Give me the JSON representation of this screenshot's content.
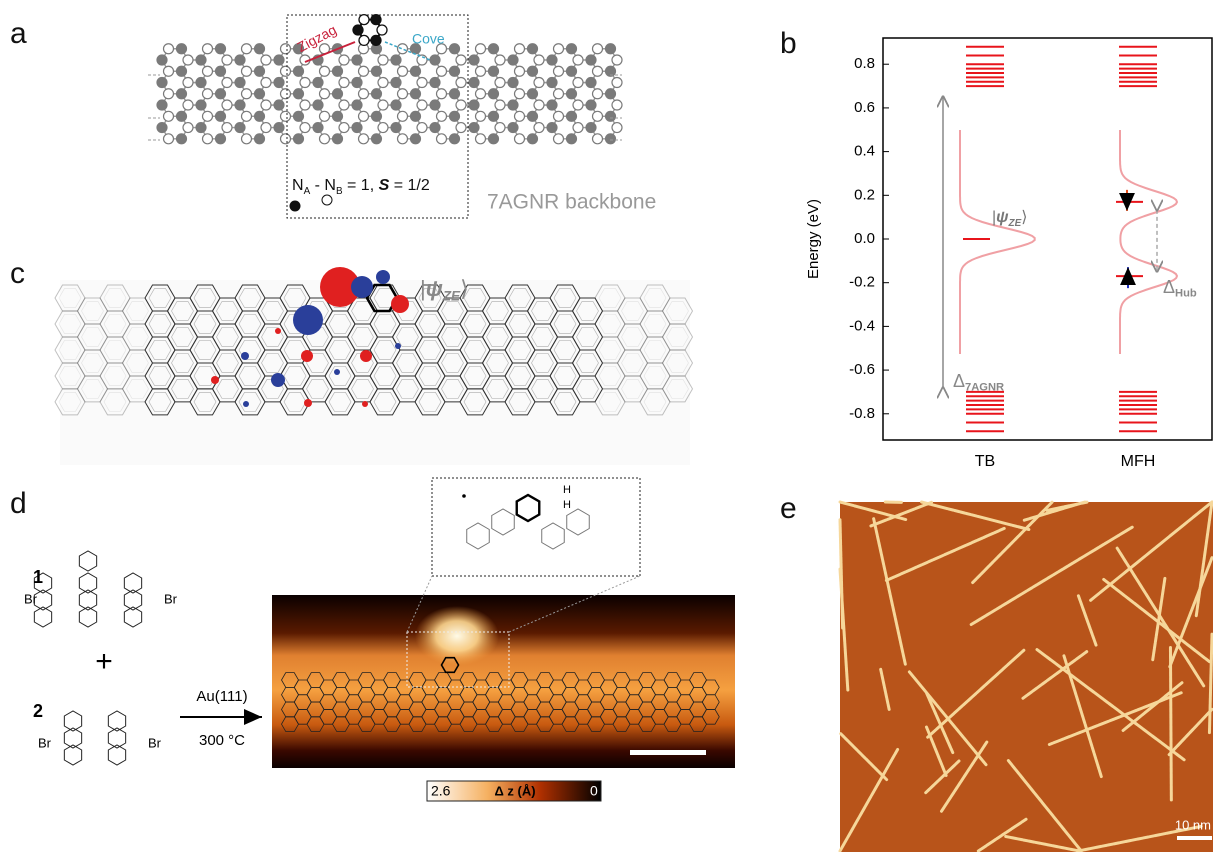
{
  "panel_labels": [
    "a",
    "b",
    "c",
    "d",
    "e"
  ],
  "panel_a": {
    "zigzag": "Zigzag",
    "cove": "Cove",
    "formula": [
      "N",
      "A",
      " - N",
      "B",
      " = 1, ",
      "S",
      " = 1/2"
    ],
    "backbone": "7AGNR backbone"
  },
  "panel_c": {
    "state": [
      "|",
      "ψ",
      "ZE",
      "⟩"
    ]
  },
  "chart_data": {
    "type": "levels",
    "ylabel": "Energy (eV)",
    "categories": [
      "TB",
      "MFH"
    ],
    "ylim": [
      -0.92,
      0.92
    ],
    "yticks": [
      0.8,
      0.6,
      0.4,
      0.2,
      {
        "value": 0,
        "label": "0.0"
      },
      -0.2,
      -0.4,
      -0.6,
      -0.8
    ],
    "color": "#e8141b",
    "levels": [
      [
        0.88,
        0.84,
        0.8,
        0.78,
        0.76,
        0.74,
        0.72,
        0.7,
        -0.7,
        -0.72,
        -0.74,
        -0.76,
        -0.78,
        -0.8,
        -0.84,
        -0.88
      ],
      [
        0.88,
        0.84,
        0.8,
        0.78,
        0.76,
        0.74,
        0.72,
        0.7,
        -0.7,
        -0.72,
        -0.74,
        -0.76,
        -0.78,
        -0.8,
        -0.84,
        -0.88
      ]
    ],
    "states": [
      [
        0
      ],
      [
        0.17,
        -0.17
      ]
    ],
    "annotations": {
      "state": [
        "|",
        "ψ",
        "ZE",
        "⟩"
      ],
      "gap": [
        "Δ",
        "7AGNR"
      ],
      "hub": [
        "Δ",
        "Hub"
      ]
    }
  },
  "panel_d": {
    "molecule_1": "1",
    "molecule_2": "2",
    "plus": "+",
    "br": [
      "Br",
      "Br",
      "Br",
      "Br"
    ],
    "substrate": "Au(111)",
    "temperature": "300 °C",
    "h": [
      "H",
      "H"
    ],
    "colorbar": {
      "max": "2.6",
      "label": "Δ z (Å)",
      "min": "0"
    }
  },
  "panel_e": {
    "scale": "10 nm"
  }
}
